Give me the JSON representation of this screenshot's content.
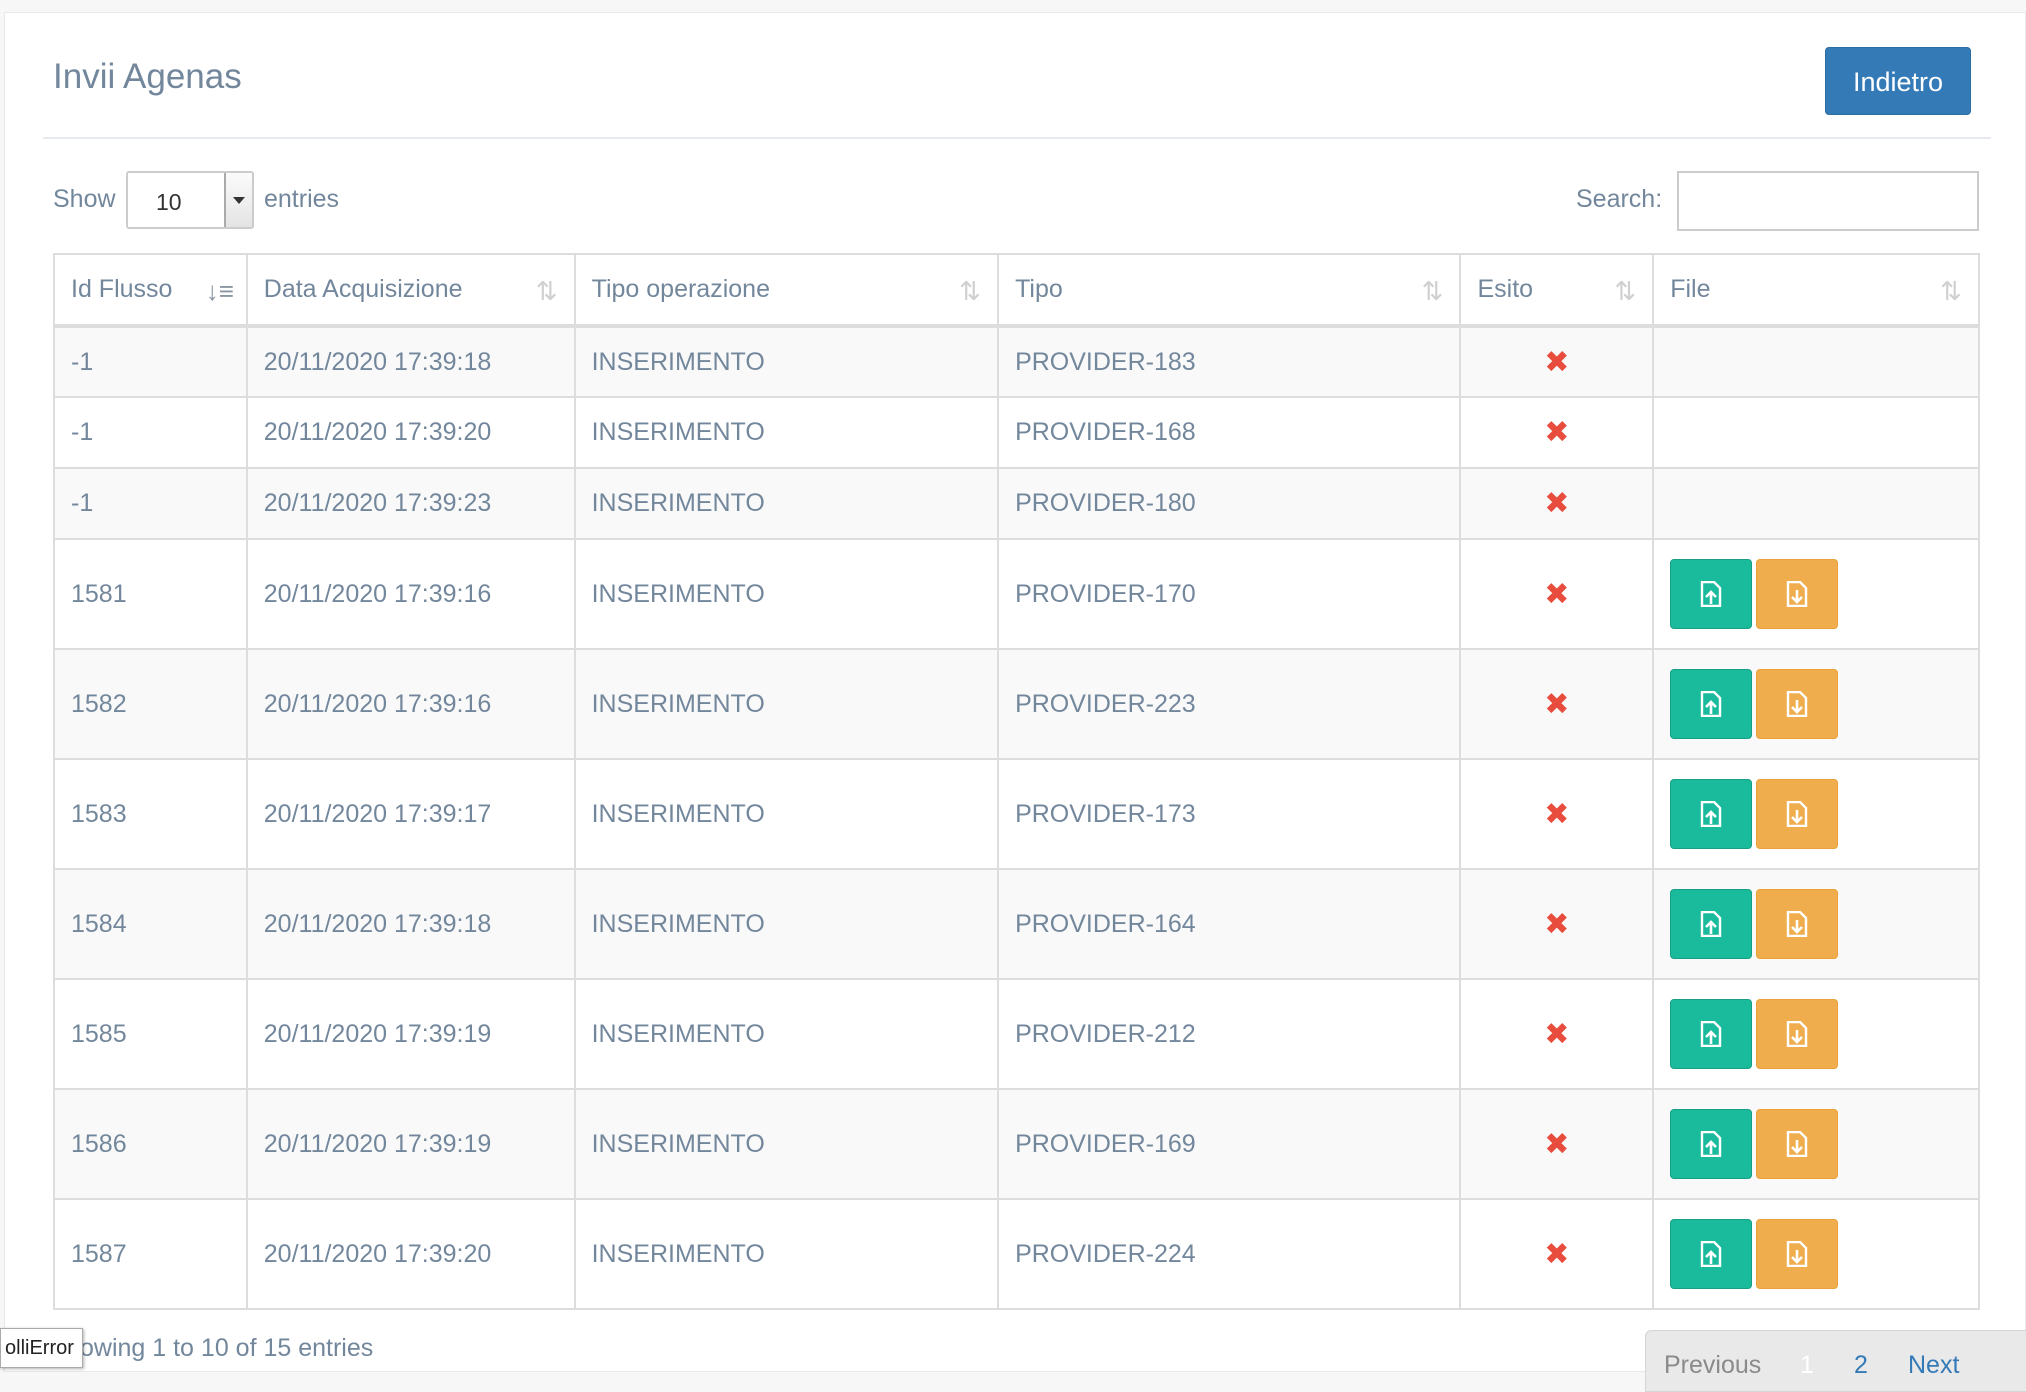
{
  "header": {
    "title": "Invii Agenas",
    "back_label": "Indietro"
  },
  "controls": {
    "show_label": "Show",
    "entries_value": "10",
    "entries_label": "entries",
    "search_label": "Search:",
    "search_value": ""
  },
  "table": {
    "columns": [
      "Id Flusso",
      "Data Acquisizione",
      "Tipo operazione",
      "Tipo",
      "Esito",
      "File"
    ],
    "rows": [
      {
        "id": "-1",
        "data": "20/11/2020 17:39:18",
        "op": "INSERIMENTO",
        "tipo": "PROVIDER-183",
        "esito": "error",
        "files": false
      },
      {
        "id": "-1",
        "data": "20/11/2020 17:39:20",
        "op": "INSERIMENTO",
        "tipo": "PROVIDER-168",
        "esito": "error",
        "files": false
      },
      {
        "id": "-1",
        "data": "20/11/2020 17:39:23",
        "op": "INSERIMENTO",
        "tipo": "PROVIDER-180",
        "esito": "error",
        "files": false
      },
      {
        "id": "1581",
        "data": "20/11/2020 17:39:16",
        "op": "INSERIMENTO",
        "tipo": "PROVIDER-170",
        "esito": "error",
        "files": true
      },
      {
        "id": "1582",
        "data": "20/11/2020 17:39:16",
        "op": "INSERIMENTO",
        "tipo": "PROVIDER-223",
        "esito": "error",
        "files": true
      },
      {
        "id": "1583",
        "data": "20/11/2020 17:39:17",
        "op": "INSERIMENTO",
        "tipo": "PROVIDER-173",
        "esito": "error",
        "files": true
      },
      {
        "id": "1584",
        "data": "20/11/2020 17:39:18",
        "op": "INSERIMENTO",
        "tipo": "PROVIDER-164",
        "esito": "error",
        "files": true
      },
      {
        "id": "1585",
        "data": "20/11/2020 17:39:19",
        "op": "INSERIMENTO",
        "tipo": "PROVIDER-212",
        "esito": "error",
        "files": true
      },
      {
        "id": "1586",
        "data": "20/11/2020 17:39:19",
        "op": "INSERIMENTO",
        "tipo": "PROVIDER-169",
        "esito": "error",
        "files": true
      },
      {
        "id": "1587",
        "data": "20/11/2020 17:39:20",
        "op": "INSERIMENTO",
        "tipo": "PROVIDER-224",
        "esito": "error",
        "files": true
      }
    ],
    "esito_icon": "x-mark-icon",
    "file_icons": [
      "file-upload-icon",
      "file-download-icon"
    ]
  },
  "footer": {
    "info": "owing 1 to 10 of 15 entries",
    "tooltip": "olliError",
    "pager": {
      "previous": "Previous",
      "page1": "1",
      "page2": "2",
      "next": "Next"
    }
  },
  "colors": {
    "primary": "#337ab7",
    "upload_btn": "#1abb9c",
    "download_btn": "#f0ad4e",
    "error": "#e74c3c"
  }
}
